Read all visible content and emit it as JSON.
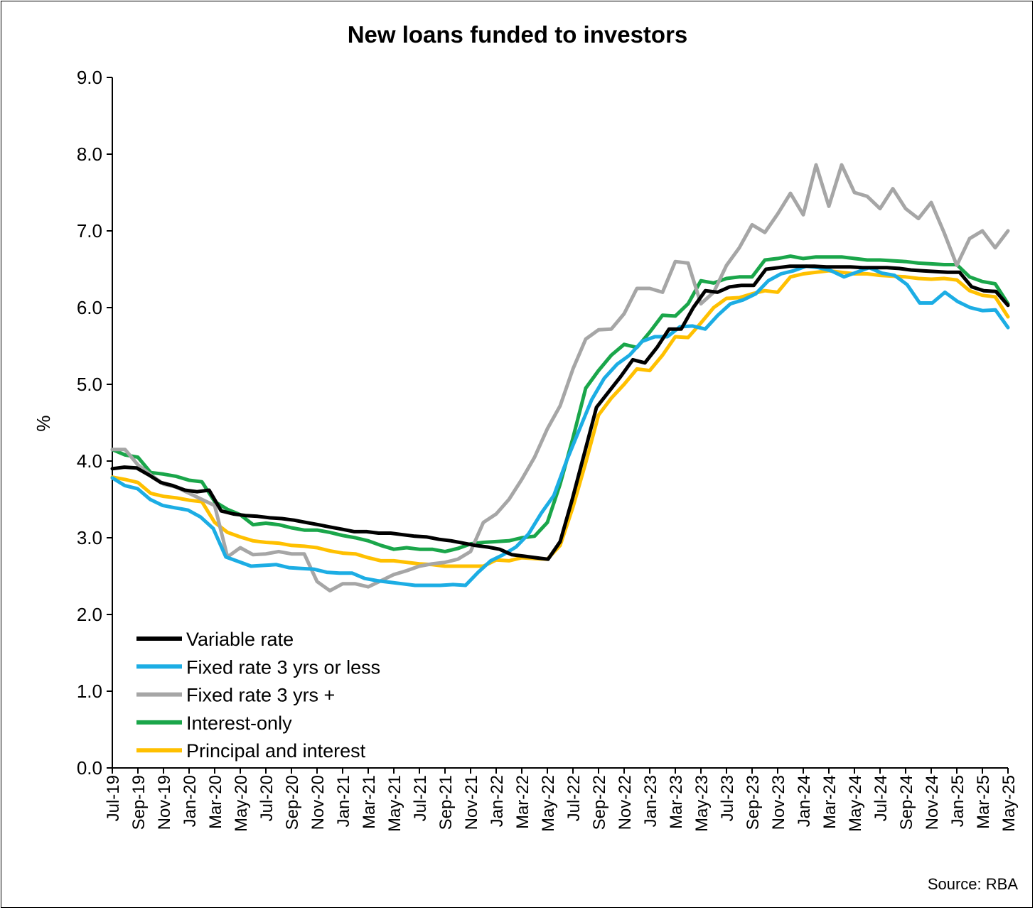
{
  "chart_data": {
    "type": "line",
    "title": "New loans funded to investors",
    "ylabel": "%",
    "xlabel": "",
    "ylim": [
      0,
      9
    ],
    "yticks": [
      "0.0",
      "1.0",
      "2.0",
      "3.0",
      "4.0",
      "5.0",
      "6.0",
      "7.0",
      "8.0",
      "9.0"
    ],
    "x_tick_labels": [
      "Jul-19",
      "Sep-19",
      "Nov-19",
      "Jan-20",
      "Mar-20",
      "May-20",
      "Jul-20",
      "Sep-20",
      "Nov-20",
      "Jan-21",
      "Mar-21",
      "May-21",
      "Jul-21",
      "Sep-21",
      "Nov-21",
      "Jan-22",
      "Mar-22",
      "May-22",
      "Jul-22",
      "Sep-22",
      "Nov-22",
      "Jan-23",
      "Mar-23",
      "May-23",
      "Jul-23",
      "Sep-23",
      "Nov-23",
      "Jan-24",
      "Mar-24",
      "May-24",
      "Jul-24",
      "Sep-24",
      "Nov-24",
      "Jan-25",
      "Mar-25",
      "May-25"
    ],
    "x_start": "Jul-19",
    "x_end": "May-25",
    "grid": false,
    "legend_position": "bottom-left",
    "source": "Source: RBA",
    "series": [
      {
        "name": "Variable rate",
        "color": "#000000",
        "values": [
          3.9,
          3.92,
          3.91,
          3.82,
          3.72,
          3.68,
          3.62,
          3.6,
          3.62,
          3.35,
          3.31,
          3.29,
          3.28,
          3.26,
          3.25,
          3.23,
          3.2,
          3.17,
          3.14,
          3.11,
          3.08,
          3.08,
          3.06,
          3.06,
          3.04,
          3.02,
          3.01,
          2.98,
          2.96,
          2.93,
          2.9,
          2.88,
          2.85,
          2.78,
          2.76,
          2.74,
          2.72,
          2.95,
          3.5,
          4.1,
          4.7,
          4.9,
          5.1,
          5.32,
          5.28,
          5.48,
          5.72,
          5.72,
          6.0,
          6.22,
          6.2,
          6.27,
          6.29,
          6.29,
          6.5,
          6.52,
          6.54,
          6.54,
          6.54,
          6.53,
          6.53,
          6.53,
          6.52,
          6.52,
          6.52,
          6.51,
          6.49,
          6.48,
          6.47,
          6.46,
          6.46,
          6.27,
          6.22,
          6.21,
          6.03
        ]
      },
      {
        "name": "Fixed rate 3 yrs or less",
        "color": "#1cade4",
        "values": [
          3.78,
          3.68,
          3.64,
          3.5,
          3.42,
          3.39,
          3.36,
          3.27,
          3.12,
          2.75,
          2.69,
          2.63,
          2.64,
          2.65,
          2.61,
          2.6,
          2.59,
          2.55,
          2.54,
          2.54,
          2.47,
          2.44,
          2.42,
          2.4,
          2.38,
          2.38,
          2.38,
          2.39,
          2.38,
          2.55,
          2.7,
          2.78,
          2.88,
          3.05,
          3.32,
          3.55,
          4.0,
          4.4,
          4.8,
          5.08,
          5.26,
          5.38,
          5.56,
          5.62,
          5.62,
          5.75,
          5.76,
          5.72,
          5.9,
          6.05,
          6.1,
          6.18,
          6.35,
          6.44,
          6.48,
          6.54,
          6.52,
          6.48,
          6.4,
          6.46,
          6.52,
          6.45,
          6.42,
          6.3,
          6.06,
          6.06,
          6.2,
          6.08,
          6.0,
          5.96,
          5.97,
          5.74
        ]
      },
      {
        "name": "Fixed rate 3 yrs +",
        "color": "#a6a6a6",
        "values": [
          4.15,
          4.15,
          3.95,
          3.82,
          3.7,
          3.66,
          3.58,
          3.5,
          3.42,
          2.75,
          2.87,
          2.78,
          2.79,
          2.82,
          2.79,
          2.79,
          2.43,
          2.31,
          2.4,
          2.4,
          2.36,
          2.44,
          2.52,
          2.57,
          2.63,
          2.66,
          2.68,
          2.72,
          2.82,
          3.2,
          3.31,
          3.5,
          3.76,
          4.05,
          4.42,
          4.72,
          5.2,
          5.59,
          5.71,
          5.72,
          5.92,
          6.25,
          6.25,
          6.2,
          6.6,
          6.58,
          6.05,
          6.2,
          6.55,
          6.78,
          7.08,
          6.98,
          7.22,
          7.49,
          7.21,
          7.86,
          7.32,
          7.86,
          7.5,
          7.45,
          7.29,
          7.55,
          7.29,
          7.16,
          7.37,
          6.98,
          6.55,
          6.9,
          7.0,
          6.78,
          7.0
        ]
      },
      {
        "name": "Interest-only",
        "color": "#1aa64a",
        "values": [
          4.15,
          4.08,
          4.05,
          3.85,
          3.83,
          3.8,
          3.75,
          3.73,
          3.47,
          3.37,
          3.3,
          3.17,
          3.19,
          3.17,
          3.13,
          3.1,
          3.1,
          3.07,
          3.03,
          3.0,
          2.96,
          2.9,
          2.85,
          2.87,
          2.85,
          2.85,
          2.82,
          2.86,
          2.92,
          2.94,
          2.95,
          2.96,
          3.0,
          3.02,
          3.2,
          3.7,
          4.3,
          4.95,
          5.18,
          5.38,
          5.52,
          5.48,
          5.68,
          5.9,
          5.89,
          6.05,
          6.35,
          6.32,
          6.38,
          6.4,
          6.4,
          6.62,
          6.64,
          6.67,
          6.64,
          6.66,
          6.66,
          6.66,
          6.64,
          6.62,
          6.62,
          6.61,
          6.6,
          6.58,
          6.57,
          6.56,
          6.56,
          6.4,
          6.34,
          6.31,
          6.05
        ]
      },
      {
        "name": "Principal and interest",
        "color": "#ffc000",
        "values": [
          3.79,
          3.76,
          3.72,
          3.58,
          3.54,
          3.52,
          3.49,
          3.47,
          3.2,
          3.07,
          3.01,
          2.96,
          2.94,
          2.93,
          2.9,
          2.89,
          2.87,
          2.83,
          2.8,
          2.79,
          2.74,
          2.7,
          2.7,
          2.68,
          2.66,
          2.65,
          2.63,
          2.63,
          2.63,
          2.63,
          2.71,
          2.7,
          2.74,
          2.73,
          2.72,
          2.9,
          3.4,
          3.98,
          4.6,
          4.82,
          5.0,
          5.2,
          5.18,
          5.38,
          5.62,
          5.61,
          5.8,
          6.0,
          6.12,
          6.13,
          6.18,
          6.22,
          6.2,
          6.4,
          6.44,
          6.46,
          6.48,
          6.46,
          6.44,
          6.44,
          6.42,
          6.41,
          6.4,
          6.38,
          6.37,
          6.38,
          6.36,
          6.22,
          6.16,
          6.14,
          5.88
        ]
      }
    ]
  }
}
